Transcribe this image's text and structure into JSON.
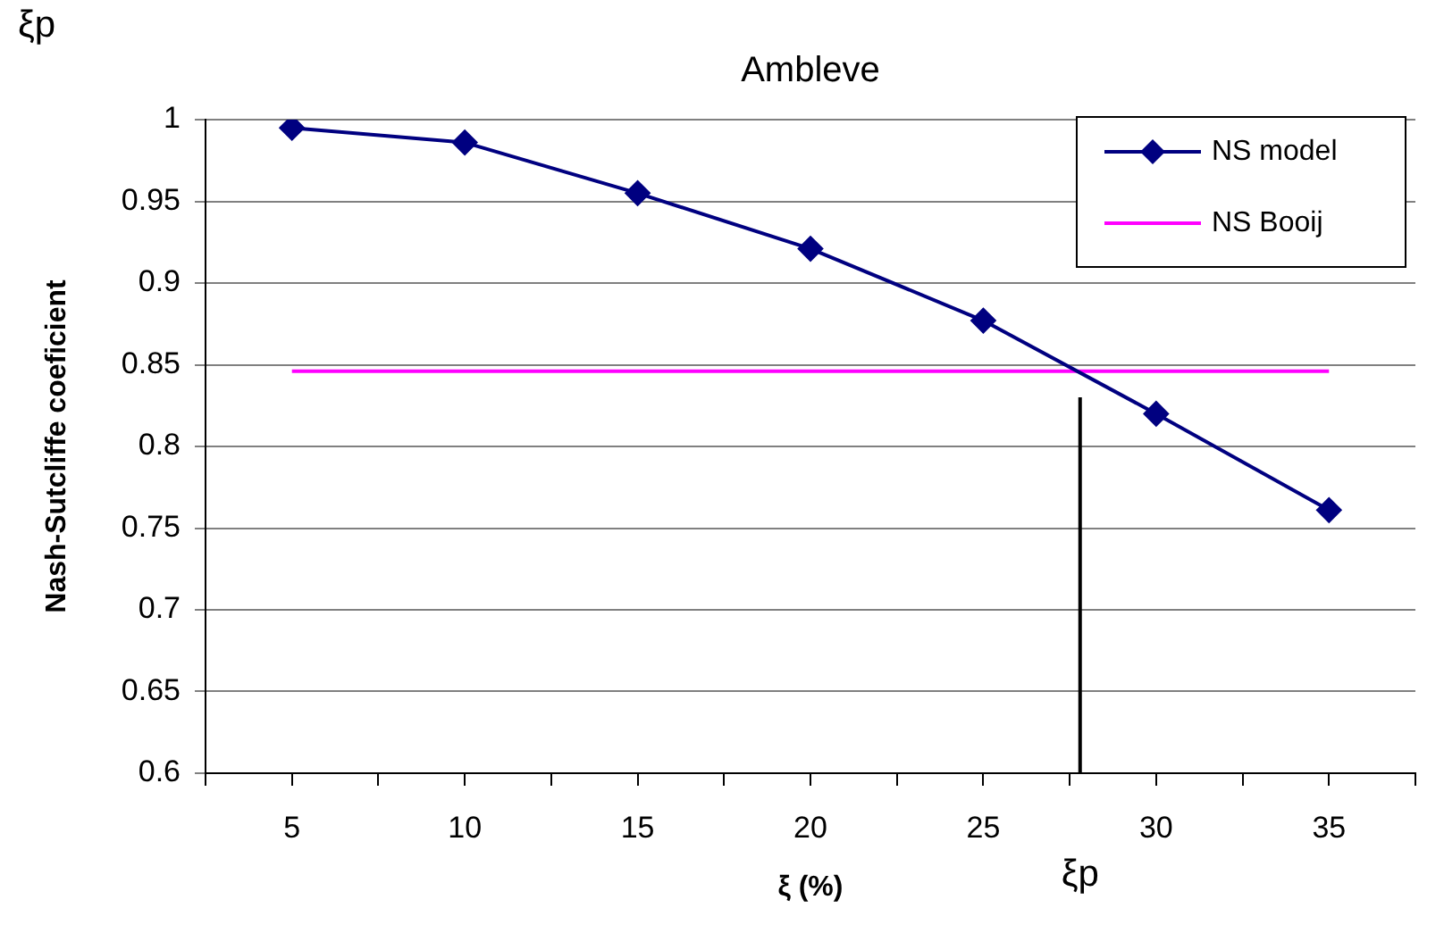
{
  "chart_data": {
    "type": "line",
    "title": "Ambleve",
    "xlabel": "ξ (%)",
    "ylabel": "Nash-Sutcliffe coeficient",
    "xlim": [
      2.5,
      37.5
    ],
    "xticks": [
      {
        "value": 2.5,
        "label": null
      },
      5,
      {
        "value": 7.5,
        "label": null
      },
      10,
      {
        "value": 12.5,
        "label": null
      },
      15,
      {
        "value": 17.5,
        "label": null
      },
      20,
      {
        "value": 22.5,
        "label": null
      },
      25,
      {
        "value": 27.5,
        "label": null
      },
      30,
      {
        "value": 32.5,
        "label": null
      },
      35,
      {
        "value": 37.5,
        "label": null
      }
    ],
    "ylim": [
      0.6,
      1
    ],
    "yticks": [
      0.6,
      0.65,
      0.7,
      0.75,
      0.8,
      0.85,
      0.9,
      0.95,
      1
    ],
    "grid": "y",
    "legend": "top right",
    "line_style": "solid",
    "series": [
      {
        "name": "NS model",
        "color": "#000080",
        "marker": "diamond",
        "x": [
          5,
          10,
          15,
          20,
          25,
          30,
          35
        ],
        "values": [
          0.995,
          0.986,
          0.955,
          0.921,
          0.877,
          0.82,
          0.761
        ]
      },
      {
        "name": "NS Booij",
        "color": "#ff00ff",
        "marker": "none",
        "x": [
          5,
          35
        ],
        "values": [
          0.846,
          0.846
        ]
      },
      {
        "color": "#000000",
        "marker": "none",
        "x": [
          27.8,
          27.8
        ],
        "values": [
          0.6,
          0.83
        ]
      }
    ],
    "annotations": [
      "ξp",
      {
        "text": "ξp",
        "x": 27.8,
        "y": 0.6
      }
    ]
  }
}
